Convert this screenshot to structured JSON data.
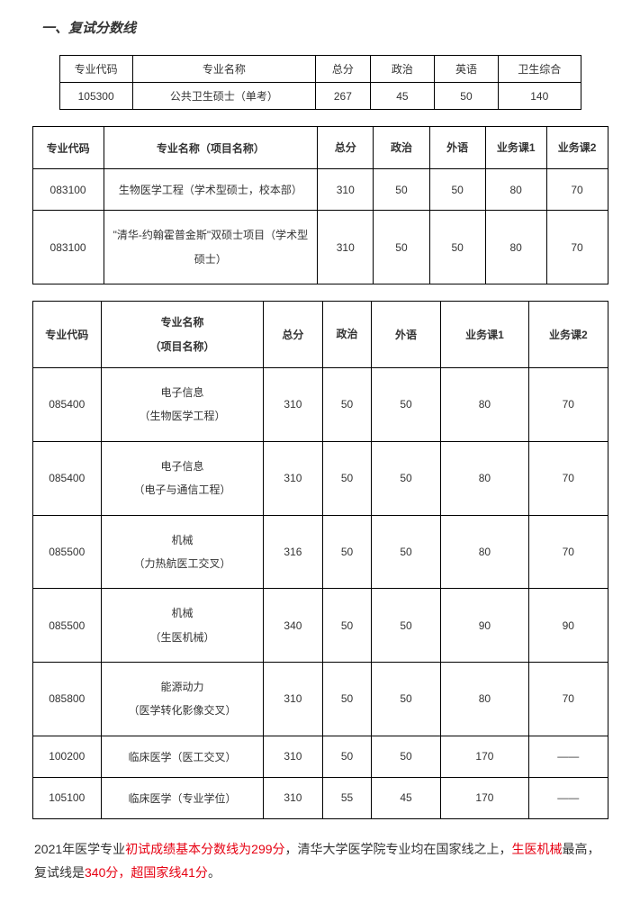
{
  "title": "一、复试分数线",
  "table1": {
    "headers": [
      "专业代码",
      "专业名称",
      "总分",
      "政治",
      "英语",
      "卫生综合"
    ],
    "rows": [
      [
        "105300",
        "公共卫生硕士（单考）",
        "267",
        "45",
        "50",
        "140"
      ]
    ],
    "col_widths": [
      "80px",
      "200px",
      "60px",
      "70px",
      "70px",
      "90px"
    ]
  },
  "table2": {
    "headers": [
      "专业代码",
      "专业名称（项目名称）",
      "总分",
      "政治",
      "外语",
      "业务课1",
      "业务课2"
    ],
    "rows": [
      [
        "083100",
        "生物医学工程（学术型硕士，校本部）",
        "310",
        "50",
        "50",
        "80",
        "70"
      ],
      [
        "083100",
        "\"清华-约翰霍普金斯\"双硕士项目（学术型硕士）",
        "310",
        "50",
        "50",
        "80",
        "70"
      ]
    ],
    "col_widths": [
      "70px",
      "210px",
      "55px",
      "55px",
      "55px",
      "60px",
      "60px"
    ]
  },
  "table3": {
    "headers": [
      "专业代码",
      "专业名称\n（项目名称）",
      "总分",
      "政治",
      "外语",
      "业务课1",
      "业务课2"
    ],
    "rows": [
      [
        "085400",
        "电子信息\n（生物医学工程）",
        "310",
        "50",
        "50",
        "80",
        "70"
      ],
      [
        "085400",
        "电子信息\n（电子与通信工程）",
        "310",
        "50",
        "50",
        "80",
        "70"
      ],
      [
        "085500",
        "机械\n（力热航医工交叉）",
        "316",
        "50",
        "50",
        "80",
        "70"
      ],
      [
        "085500",
        "机械\n（生医机械）",
        "340",
        "50",
        "50",
        "90",
        "90"
      ],
      [
        "085800",
        "能源动力\n（医学转化影像交叉）",
        "310",
        "50",
        "50",
        "80",
        "70"
      ],
      [
        "100200",
        "临床医学（医工交叉）",
        "310",
        "50",
        "50",
        "170",
        "——"
      ],
      [
        "105100",
        "临床医学（专业学位）",
        "310",
        "55",
        "45",
        "170",
        "——"
      ]
    ],
    "col_widths": [
      "70px",
      "165px",
      "60px",
      "50px",
      "70px",
      "90px",
      "80px"
    ]
  },
  "footnote": {
    "p1a": "2021年医学专业",
    "p1b": "初试成绩基本分数线为299分",
    "p1c": "，清华大学医学院专业均在国家线之上，",
    "p1d": "生医机械",
    "p1e": "最高，复试线是",
    "p1f": "340分，超国家线41分",
    "p1g": "。"
  },
  "colors": {
    "text": "#333333",
    "border": "#000000",
    "red": "#e60012",
    "bg": "#ffffff"
  }
}
